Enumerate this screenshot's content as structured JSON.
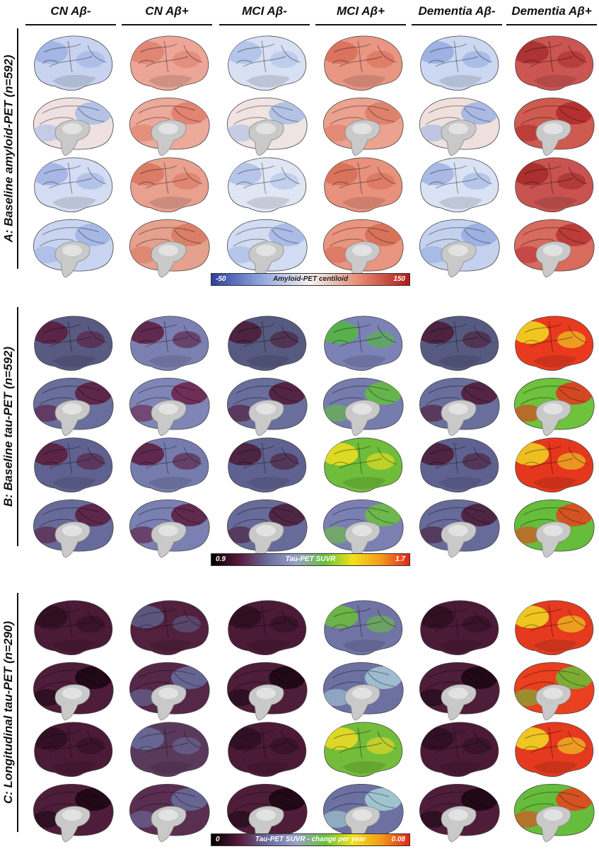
{
  "columns": [
    {
      "label": "CN Aβ-"
    },
    {
      "label": "CN Aβ+"
    },
    {
      "label": "MCI Aβ-"
    },
    {
      "label": "MCI Aβ+"
    },
    {
      "label": "Dementia Aβ-"
    },
    {
      "label": "Dementia Aβ+"
    }
  ],
  "sections": [
    {
      "label": "A: Baseline amyloid-PET (n=592)",
      "colorbar": {
        "min": "-50",
        "title": "Amyloid-PET centiloid",
        "max": "150",
        "gradient": [
          "#2f3e9e",
          "#8fa5e0",
          "#f4f1f1",
          "#e58a70",
          "#b01a1a"
        ]
      },
      "palette": {
        "base": "#f3ecec",
        "gyri": "#ffffff",
        "medial": "#ead9d9"
      },
      "cells": [
        [
          {
            "fill": "#c7d3ef",
            "accent": "#9cb0e2"
          },
          {
            "fill": "#eca596",
            "accent": "#dd8070"
          },
          {
            "fill": "#d8e0f4",
            "accent": "#aebfe7"
          },
          {
            "fill": "#e99683",
            "accent": "#d86d58"
          },
          {
            "fill": "#ccd8f2",
            "accent": "#94abe0"
          },
          {
            "fill": "#cb5551",
            "accent": "#a82f2f"
          }
        ],
        [
          {
            "fill": "#efe1e1",
            "accent": "#a9bce6"
          },
          {
            "fill": "#ebaa9a",
            "accent": "#e07e6a"
          },
          {
            "fill": "#f0e4e2",
            "accent": "#a9bce6"
          },
          {
            "fill": "#eba28f",
            "accent": "#dd7c66"
          },
          {
            "fill": "#efe0de",
            "accent": "#9fb3e4"
          },
          {
            "fill": "#cf5a50",
            "accent": "#b02a2a"
          }
        ],
        [
          {
            "fill": "#d4ddf3",
            "accent": "#9fb2e3"
          },
          {
            "fill": "#e9a08f",
            "accent": "#d8765f"
          },
          {
            "fill": "#e1e6f5",
            "accent": "#aebfe8"
          },
          {
            "fill": "#e8917c",
            "accent": "#d66d55"
          },
          {
            "fill": "#dae2f5",
            "accent": "#9fb2e3"
          },
          {
            "fill": "#c95350",
            "accent": "#a42929"
          }
        ],
        [
          {
            "fill": "#c9d5f0",
            "accent": "#a0b3e3"
          },
          {
            "fill": "#e6a08e",
            "accent": "#d77962"
          },
          {
            "fill": "#d2dcf2",
            "accent": "#a4b6e4"
          },
          {
            "fill": "#e9957f",
            "accent": "#d46c55"
          },
          {
            "fill": "#c5d2ef",
            "accent": "#95abe0"
          },
          {
            "fill": "#d86a5e",
            "accent": "#b93434"
          }
        ]
      ]
    },
    {
      "label": "B: Baseline tau-PET (n=592)",
      "colorbar": {
        "min": "0.9",
        "title": "Tau-PET SUVR",
        "max": "1.7",
        "gradient": [
          "#000000",
          "#5a1a3c",
          "#6b6f9e",
          "#9aa0c9",
          "#66c23a",
          "#f3e11a",
          "#f39a1b",
          "#e3261c"
        ]
      },
      "cells": [
        [
          {
            "fill": "#585a82",
            "accent": "#5a1b3c"
          },
          {
            "fill": "#7b80b1",
            "accent": "#5a1b3c"
          },
          {
            "fill": "#575a80",
            "accent": "#4a1a35"
          },
          {
            "fill": "#7c82b5",
            "accent": "#52b93a"
          },
          {
            "fill": "#575a80",
            "accent": "#4a1a35"
          },
          {
            "fill": "#e93a1f",
            "accent": "#f2df24"
          }
        ],
        [
          {
            "fill": "#6a6e9c",
            "accent": "#5a1b3c"
          },
          {
            "fill": "#7f85b6",
            "accent": "#6b1f45"
          },
          {
            "fill": "#6a6e9c",
            "accent": "#4f1836"
          },
          {
            "fill": "#767cae",
            "accent": "#63bf3a"
          },
          {
            "fill": "#6a6e9c",
            "accent": "#4f1836"
          },
          {
            "fill": "#6ec23c",
            "accent": "#e53320"
          }
        ],
        [
          {
            "fill": "#5f6290",
            "accent": "#5a1b3c"
          },
          {
            "fill": "#767cae",
            "accent": "#5a1b3c"
          },
          {
            "fill": "#5f6290",
            "accent": "#4a1a35"
          },
          {
            "fill": "#6fbd3a",
            "accent": "#f1df22"
          },
          {
            "fill": "#5f6290",
            "accent": "#4a1a35"
          },
          {
            "fill": "#e4371e",
            "accent": "#f0d624"
          }
        ],
        [
          {
            "fill": "#676b99",
            "accent": "#5a1b3c"
          },
          {
            "fill": "#7a80b2",
            "accent": "#5a1b3c"
          },
          {
            "fill": "#676b99",
            "accent": "#4a1a35"
          },
          {
            "fill": "#7a80b2",
            "accent": "#6cc03c"
          },
          {
            "fill": "#676b99",
            "accent": "#4a1a35"
          },
          {
            "fill": "#66bd3b",
            "accent": "#e8411f"
          }
        ]
      ]
    },
    {
      "label": "C: Longitudinal tau-PET (n=290)",
      "colorbar": {
        "min": "0",
        "title": "Tau-PET SUVR - change per year",
        "max": "0.08",
        "gradient": [
          "#000000",
          "#5a1a3c",
          "#6b6f9e",
          "#9aa0c9",
          "#66c23a",
          "#f3e11a",
          "#f39a1b",
          "#e3261c"
        ]
      },
      "cells": [
        [
          {
            "fill": "#4a1a36",
            "accent": "#2e0f21"
          },
          {
            "fill": "#51213e",
            "accent": "#5e5f8a"
          },
          {
            "fill": "#4a1a36",
            "accent": "#2e0f21"
          },
          {
            "fill": "#6f74a5",
            "accent": "#6cc03a"
          },
          {
            "fill": "#4a1a36",
            "accent": "#2e0f21"
          },
          {
            "fill": "#e53a1f",
            "accent": "#f1df22"
          }
        ],
        [
          {
            "fill": "#4e1d3a",
            "accent": "#1a0612"
          },
          {
            "fill": "#55284a",
            "accent": "#6a6e9c"
          },
          {
            "fill": "#4e1d3a",
            "accent": "#1a0612"
          },
          {
            "fill": "#6d71a2",
            "accent": "#a8c8d8"
          },
          {
            "fill": "#4e1d3a",
            "accent": "#1a0612"
          },
          {
            "fill": "#e9401f",
            "accent": "#6ac03a"
          }
        ],
        [
          {
            "fill": "#4a1a36",
            "accent": "#2e0f21"
          },
          {
            "fill": "#5a3a5c",
            "accent": "#6a6e9c"
          },
          {
            "fill": "#4a1a36",
            "accent": "#2e0f21"
          },
          {
            "fill": "#73bd3a",
            "accent": "#f0dc24"
          },
          {
            "fill": "#4a1a36",
            "accent": "#2e0f21"
          },
          {
            "fill": "#e53a1f",
            "accent": "#f2df24"
          }
        ],
        [
          {
            "fill": "#4e1d3a",
            "accent": "#1a0612"
          },
          {
            "fill": "#5a2e50",
            "accent": "#6a6e9c"
          },
          {
            "fill": "#4e1d3a",
            "accent": "#1a0612"
          },
          {
            "fill": "#6d71a2",
            "accent": "#a8d2d6"
          },
          {
            "fill": "#4e1d3a",
            "accent": "#1a0612"
          },
          {
            "fill": "#66bd3b",
            "accent": "#e8411f"
          }
        ]
      ]
    }
  ]
}
